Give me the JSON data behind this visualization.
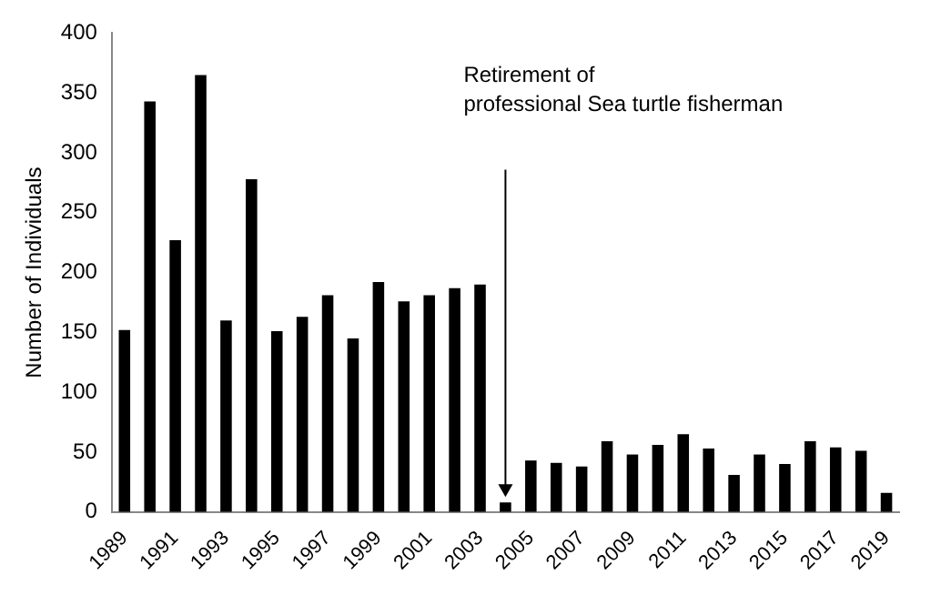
{
  "chart_data": {
    "type": "bar",
    "ylabel": "Number of Individuals",
    "categories": [
      "1989",
      null,
      "1991",
      null,
      "1993",
      null,
      "1995",
      null,
      "1997",
      null,
      "1999",
      null,
      "2001",
      null,
      "2003",
      null,
      "2005",
      null,
      "2007",
      null,
      "2009",
      null,
      "2011",
      null,
      "2013",
      null,
      "2015",
      null,
      "2017",
      null,
      "2019"
    ],
    "values": [
      152,
      343,
      227,
      365,
      160,
      278,
      151,
      163,
      181,
      145,
      192,
      176,
      181,
      187,
      190,
      8,
      43,
      41,
      38,
      59,
      48,
      56,
      65,
      53,
      31,
      48,
      40,
      59,
      54,
      51,
      16
    ],
    "color": "#000000",
    "ylim": [
      0,
      400
    ],
    "yticks": [
      0,
      50,
      100,
      150,
      200,
      250,
      300,
      350,
      400
    ],
    "grid": false,
    "legend": false,
    "annotations": [
      "Retirement of professional Sea turtle fisherman"
    ]
  }
}
